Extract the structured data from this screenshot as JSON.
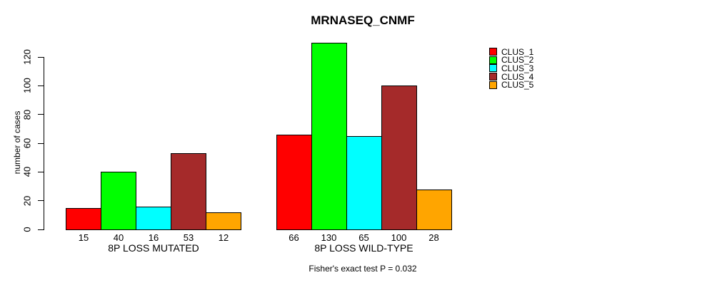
{
  "chart_data": {
    "type": "bar",
    "title": "MRNASEQ_CNMF",
    "xlabel": "",
    "ylabel": "number of cases",
    "ylim": [
      0,
      130
    ],
    "yticks": [
      0,
      20,
      40,
      60,
      80,
      100,
      120
    ],
    "grid": false,
    "legend_position": "top-right",
    "bar_value_labels_shown": true,
    "categories": [
      "8P LOSS MUTATED",
      "8P LOSS WILD-TYPE"
    ],
    "series": [
      {
        "name": "CLUS_1",
        "color": "#FF0000",
        "values": [
          15,
          66
        ]
      },
      {
        "name": "CLUS_2",
        "color": "#00FF00",
        "values": [
          40,
          130
        ]
      },
      {
        "name": "CLUS_3",
        "color": "#00FFFF",
        "values": [
          16,
          65
        ]
      },
      {
        "name": "CLUS_4",
        "color": "#A52A2A",
        "values": [
          53,
          100
        ]
      },
      {
        "name": "CLUS_5",
        "color": "#FFA500",
        "values": [
          12,
          28
        ]
      }
    ],
    "footnote": "Fisher's exact test P = 0.032"
  },
  "colors": {
    "background": "#FFFFFF",
    "axis": "#000000",
    "text": "#000000",
    "bar_border": "#000000"
  }
}
